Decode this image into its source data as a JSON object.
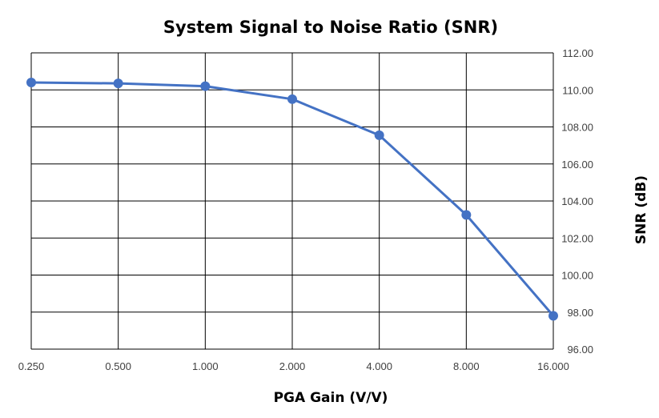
{
  "chart_data": {
    "type": "line",
    "title": "System Signal to Noise Ratio (SNR)",
    "xlabel": "PGA Gain (V/V)",
    "ylabel": "SNR (dB)",
    "x_scale": "log2",
    "categories": [
      "0.250",
      "0.500",
      "1.000",
      "2.000",
      "4.000",
      "8.000",
      "16.000"
    ],
    "series": [
      {
        "name": "SNR",
        "color": "#4472C4",
        "values": [
          110.4,
          110.35,
          110.2,
          109.5,
          107.55,
          103.25,
          97.8
        ]
      }
    ],
    "ylim": [
      96,
      112
    ],
    "yticks": [
      "96.00",
      "98.00",
      "100.00",
      "102.00",
      "104.00",
      "106.00",
      "108.00",
      "110.00",
      "112.00"
    ],
    "y_axis_side": "right",
    "grid": true
  }
}
